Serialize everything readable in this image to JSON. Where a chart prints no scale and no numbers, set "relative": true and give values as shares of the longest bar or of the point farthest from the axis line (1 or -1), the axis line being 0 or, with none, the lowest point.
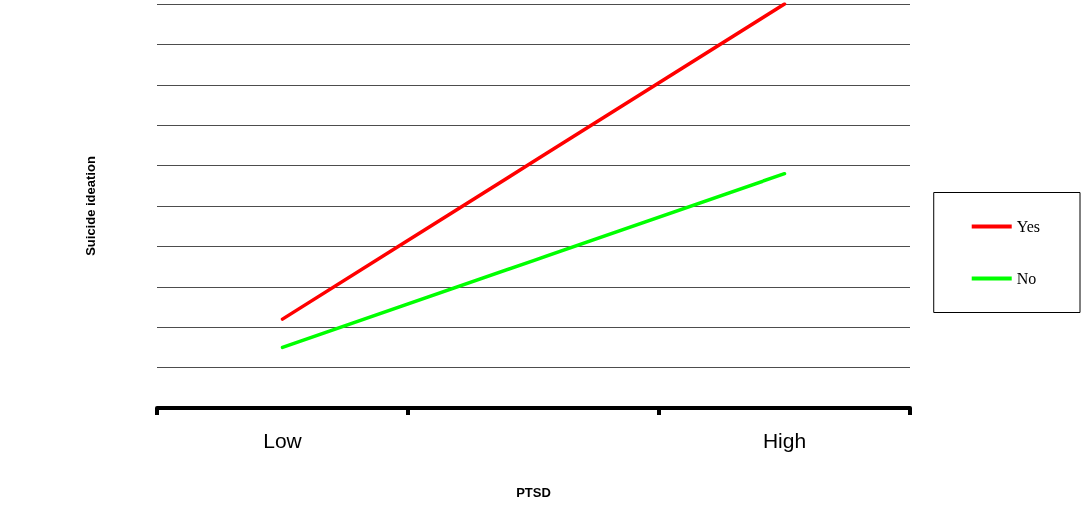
{
  "chart_data": {
    "type": "line",
    "relative": true,
    "xlabel": "PTSD",
    "ylabel": "Suicide ideation",
    "categories": [
      "Low",
      null,
      "High"
    ],
    "series": [
      {
        "name": "Yes",
        "color": "#ff0000",
        "values": [
          0.22,
          0.61,
          1
        ]
      },
      {
        "name": "No",
        "color": "#00ff00",
        "values": [
          0.15,
          0.365,
          0.58
        ]
      }
    ],
    "grid": "y",
    "legend": "right",
    "marker": "none",
    "line_style": "solid"
  }
}
